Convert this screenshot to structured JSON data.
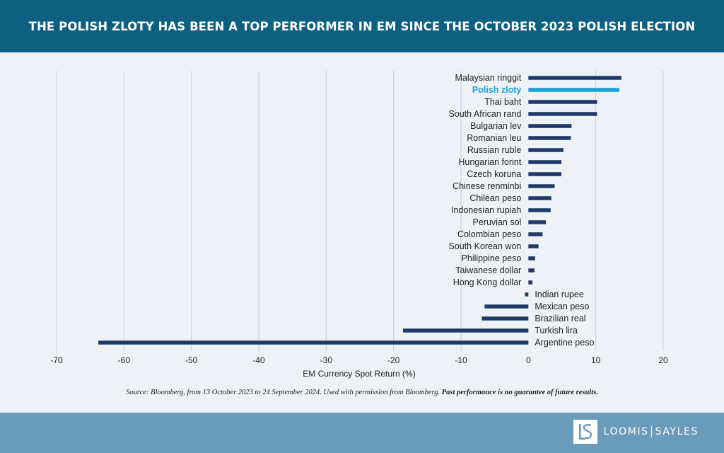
{
  "header": {
    "title": "THE POLISH ZLOTY HAS BEEN A TOP PERFORMER IN EM SINCE THE OCTOBER 2023 POLISH ELECTION"
  },
  "chart_data": {
    "type": "bar",
    "orientation": "horizontal",
    "xlabel": "EM Currency Spot Return (%)",
    "xlim": [
      -70,
      20
    ],
    "xticks": [
      "-70",
      "-60",
      "-50",
      "-40",
      "-30",
      "-20",
      "-10",
      "0",
      "10",
      "20"
    ],
    "grid": "vertical",
    "categories": [
      "Malaysian ringgit",
      "Polish zloty",
      "Thai baht",
      "South African rand",
      "Bulgarian lev",
      "Romanian leu",
      "Russian ruble",
      "Hungarian forint",
      "Czech koruna",
      "Chinese renminbi",
      "Chilean peso",
      "Indonesian rupiah",
      "Peruvian sol",
      "Colombian peso",
      "South Korean won",
      "Philippine peso",
      "Taiwanese dollar",
      "Hong Kong dollar",
      "Indian rupee",
      "Mexican peso",
      "Brazilian real",
      "Turkish lira",
      "Argentine peso"
    ],
    "values": [
      13.8,
      13.5,
      10.2,
      10.2,
      6.4,
      6.3,
      5.2,
      4.9,
      4.9,
      3.9,
      3.4,
      3.3,
      2.6,
      2.1,
      1.5,
      1.0,
      0.9,
      0.6,
      -0.5,
      -6.5,
      -6.9,
      -18.6,
      -63.8
    ],
    "highlight": "Polish zloty",
    "colors": {
      "bar": "#1f3a68",
      "highlight": "#1ba0d7",
      "grid": "#c5cbd8",
      "axis": "#333333",
      "label": "#222222"
    }
  },
  "source": {
    "text": "Source: Bloomberg, from 13 October 2023 to 24 September 2024. Used with permission from Bloomberg.",
    "disclaimer": "Past performance is no guarantee of future results."
  },
  "footer": {
    "logo_left": "LOOMIS",
    "logo_right": "SAYLES",
    "logo_icon": "loomis-sayles-ls-monogram"
  }
}
